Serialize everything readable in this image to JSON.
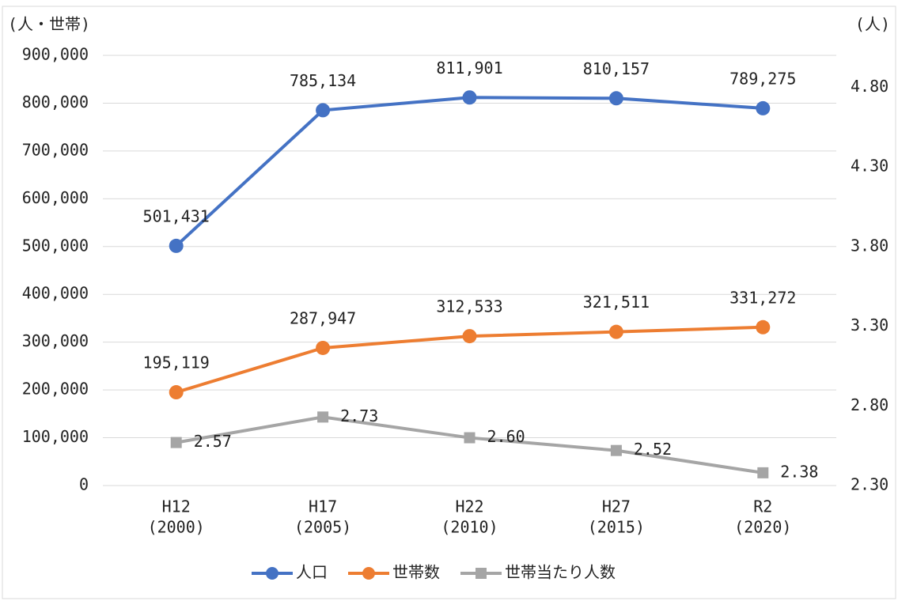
{
  "chart_data": {
    "type": "line",
    "y_axis_title": "(人・世帯)",
    "y2_axis_title": "(人)",
    "categories": [
      [
        "H12",
        "(2000)"
      ],
      [
        "H17",
        "(2005)"
      ],
      [
        "H22",
        "(2010)"
      ],
      [
        "H27",
        "(2015)"
      ],
      [
        "R2",
        "(2020)"
      ]
    ],
    "series": [
      {
        "name": "人口",
        "color": "#4472c4",
        "marker": "circle",
        "values": [
          501431,
          785134,
          811901,
          810157,
          789275
        ],
        "value_labels": [
          "501,431",
          "785,134",
          "811,901",
          "810,157",
          "789,275"
        ]
      },
      {
        "name": "世帯数",
        "color": "#ed7d31",
        "marker": "circle",
        "values": [
          195119,
          287947,
          312533,
          321511,
          331272
        ],
        "value_labels": [
          "195,119",
          "287,947",
          "312,533",
          "321,511",
          "331,272"
        ]
      },
      {
        "name": "世帯当たり人数",
        "color": "#a5a5a5",
        "marker": "square",
        "axis": "y2",
        "values": [
          2.57,
          2.73,
          2.6,
          2.52,
          2.38
        ],
        "value_labels": [
          "2.57",
          "2.73",
          "2.60",
          "2.52",
          "2.38"
        ]
      }
    ],
    "ylim": [
      0,
      900000
    ],
    "yticks": [
      0,
      {
        "value": 100000,
        "label": "100,000"
      },
      {
        "value": 200000,
        "label": "200,000"
      },
      {
        "value": 300000,
        "label": "300,000"
      },
      {
        "value": 400000,
        "label": "400,000"
      },
      {
        "value": 500000,
        "label": "500,000"
      },
      {
        "value": 600000,
        "label": "600,000"
      },
      {
        "value": 700000,
        "label": "700,000"
      },
      {
        "value": 800000,
        "label": "800,000"
      },
      {
        "value": 900000,
        "label": "900,000"
      }
    ],
    "y2lim": [
      2.3,
      5.0
    ],
    "y2ticks": [
      {
        "value": 2.3,
        "label": "2.30"
      },
      {
        "value": 2.8,
        "label": "2.80"
      },
      {
        "value": 3.3,
        "label": "3.30"
      },
      {
        "value": 3.8,
        "label": "3.80"
      },
      {
        "value": 4.3,
        "label": "4.30"
      },
      {
        "value": 4.8,
        "label": "4.80"
      }
    ],
    "grid": true,
    "legend": "bottom"
  }
}
